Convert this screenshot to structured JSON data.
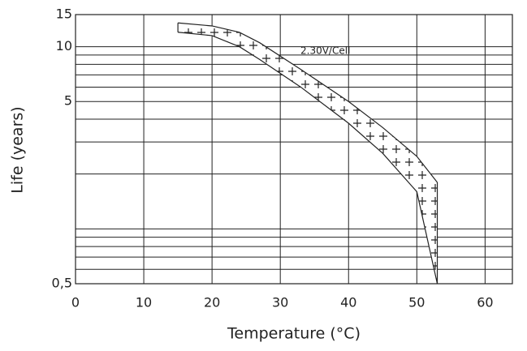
{
  "chart_data": {
    "type": "band",
    "x_label": "Temperature (°C)",
    "y_label": "Life (years)",
    "annotation": "2.30V/Cell",
    "x": [
      15,
      20,
      24,
      27,
      33,
      40,
      45,
      50,
      53
    ],
    "upper": [
      13.5,
      13,
      12,
      10.5,
      7.5,
      5,
      3.6,
      2.5,
      1.8
    ],
    "lower": [
      12,
      11.5,
      10,
      8.5,
      6,
      3.8,
      2.6,
      1.6,
      0.5
    ],
    "color": "#222222",
    "xlim": [
      0,
      64
    ],
    "xticks": [
      0,
      10,
      20,
      30,
      40,
      50,
      60
    ],
    "ylim": [
      0.5,
      15
    ],
    "yticks": [
      {
        "value": 0.5,
        "label": "0,5"
      },
      5,
      10,
      15
    ],
    "yscale": "log",
    "minor_grid": [
      0.6,
      0.7,
      0.8,
      0.9,
      1,
      2,
      3,
      4,
      6,
      7,
      8,
      9
    ],
    "grid": true
  }
}
